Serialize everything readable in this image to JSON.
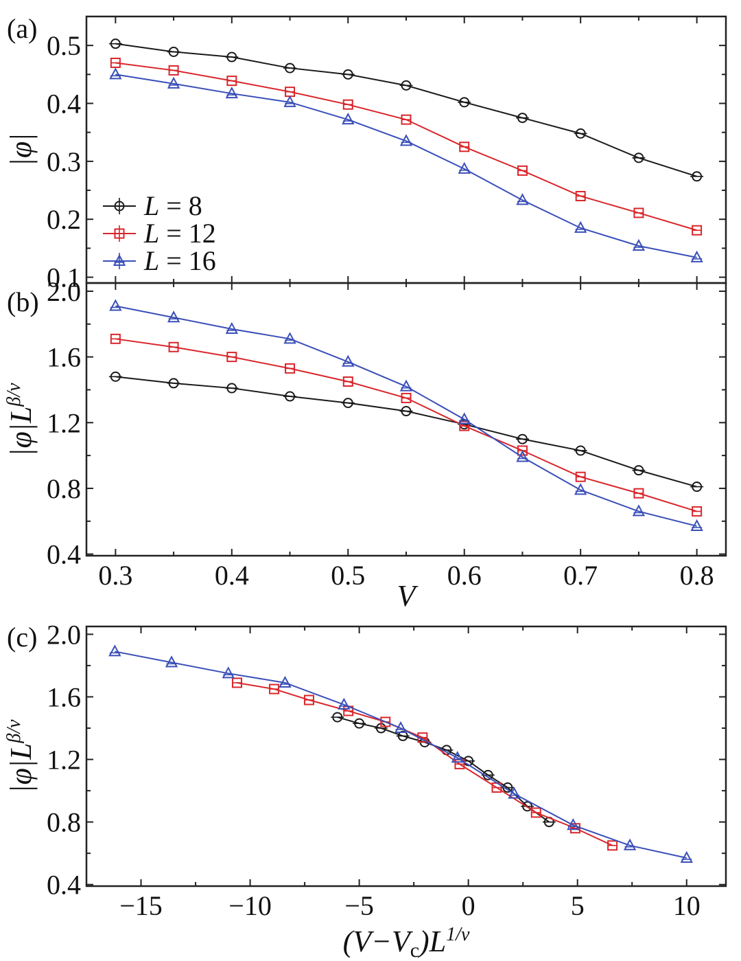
{
  "chart_data": [
    {
      "panel": "(a)",
      "type": "line",
      "xlabel": "",
      "ylabel": "|φ|",
      "xlim": [
        0.275,
        0.825
      ],
      "ylim": [
        0.09,
        0.55
      ],
      "xticks": [
        0.3,
        0.4,
        0.5,
        0.6,
        0.7,
        0.8
      ],
      "yticks": [
        0.1,
        0.2,
        0.3,
        0.4,
        0.5
      ],
      "ytick_labels": [
        "0.1",
        "0.2",
        "0.3",
        "0.4",
        "0.5"
      ],
      "legend_position": "bottom-left",
      "series": [
        {
          "name": "L = 8",
          "label_var": "L",
          "label_val": " = 8",
          "color": "#1a1a1a",
          "marker": "circle",
          "x": [
            0.3,
            0.35,
            0.4,
            0.45,
            0.5,
            0.55,
            0.6,
            0.65,
            0.7,
            0.75,
            0.8
          ],
          "y": [
            0.503,
            0.489,
            0.48,
            0.461,
            0.45,
            0.431,
            0.402,
            0.375,
            0.348,
            0.306,
            0.274
          ]
        },
        {
          "name": "L = 12",
          "label_var": "L",
          "label_val": " = 12",
          "color": "#d9262b",
          "marker": "square",
          "x": [
            0.3,
            0.35,
            0.4,
            0.45,
            0.5,
            0.55,
            0.6,
            0.65,
            0.7,
            0.75,
            0.8
          ],
          "y": [
            0.47,
            0.457,
            0.439,
            0.42,
            0.398,
            0.372,
            0.325,
            0.284,
            0.24,
            0.211,
            0.181
          ]
        },
        {
          "name": "L = 16",
          "label_var": "L",
          "label_val": " = 16",
          "color": "#3a4fb8",
          "marker": "triangle",
          "x": [
            0.3,
            0.35,
            0.4,
            0.45,
            0.5,
            0.55,
            0.6,
            0.65,
            0.7,
            0.75,
            0.8
          ],
          "y": [
            0.45,
            0.434,
            0.417,
            0.402,
            0.372,
            0.335,
            0.287,
            0.233,
            0.185,
            0.154,
            0.134
          ]
        }
      ]
    },
    {
      "panel": "(b)",
      "type": "line",
      "xlabel": "V",
      "ylabel": "|φ|L^{β/ν}",
      "xlim": [
        0.275,
        0.825
      ],
      "ylim": [
        0.39,
        2.05
      ],
      "xticks": [
        0.3,
        0.4,
        0.5,
        0.6,
        0.7,
        0.8
      ],
      "xtick_labels": [
        "0.3",
        "0.4",
        "0.5",
        "0.6",
        "0.7",
        "0.8"
      ],
      "yticks": [
        0.4,
        0.8,
        1.2,
        1.6,
        2.0
      ],
      "ytick_labels": [
        "0.4",
        "0.8",
        "1.2",
        "1.6",
        "2.0"
      ],
      "series": [
        {
          "name": "L = 8",
          "color": "#1a1a1a",
          "marker": "circle",
          "x": [
            0.3,
            0.35,
            0.4,
            0.45,
            0.5,
            0.55,
            0.6,
            0.65,
            0.7,
            0.75,
            0.8
          ],
          "y": [
            1.48,
            1.44,
            1.41,
            1.36,
            1.32,
            1.27,
            1.19,
            1.1,
            1.03,
            0.91,
            0.81
          ]
        },
        {
          "name": "L = 12",
          "color": "#d9262b",
          "marker": "square",
          "x": [
            0.3,
            0.35,
            0.4,
            0.45,
            0.5,
            0.55,
            0.6,
            0.65,
            0.7,
            0.75,
            0.8
          ],
          "y": [
            1.71,
            1.66,
            1.6,
            1.53,
            1.45,
            1.35,
            1.18,
            1.03,
            0.87,
            0.77,
            0.66
          ]
        },
        {
          "name": "L = 16",
          "color": "#3a4fb8",
          "marker": "triangle",
          "x": [
            0.3,
            0.35,
            0.4,
            0.45,
            0.5,
            0.55,
            0.6,
            0.65,
            0.7,
            0.75,
            0.8
          ],
          "y": [
            1.91,
            1.84,
            1.77,
            1.71,
            1.57,
            1.42,
            1.22,
            0.99,
            0.79,
            0.66,
            0.57
          ]
        }
      ]
    },
    {
      "panel": "(c)",
      "type": "line",
      "xlabel": "(V−V_c)L^{1/ν}",
      "ylabel": "|φ|L^{β/ν}",
      "xlim": [
        -17.5,
        11.8
      ],
      "ylim": [
        0.39,
        2.05
      ],
      "xticks": [
        -15,
        -10,
        -5,
        0,
        5,
        10
      ],
      "xtick_labels": [
        "−15",
        "−10",
        "−5",
        "0",
        "5",
        "10"
      ],
      "yticks": [
        0.4,
        0.8,
        1.2,
        1.6,
        2.0
      ],
      "ytick_labels": [
        "0.4",
        "0.8",
        "1.2",
        "1.6",
        "2.0"
      ],
      "series": [
        {
          "name": "L = 8",
          "color": "#1a1a1a",
          "marker": "circle",
          "x": [
            -6.0,
            -5.0,
            -4.0,
            -3.0,
            -2.0,
            -1.0,
            0.0,
            0.9,
            1.8,
            2.7,
            3.7
          ],
          "y": [
            1.47,
            1.43,
            1.4,
            1.35,
            1.31,
            1.26,
            1.19,
            1.1,
            1.02,
            0.9,
            0.8
          ]
        },
        {
          "name": "L = 12",
          "color": "#d9262b",
          "marker": "square",
          "x": [
            -10.6,
            -8.9,
            -7.3,
            -5.5,
            -3.8,
            -2.1,
            -0.4,
            1.3,
            3.1,
            4.9,
            6.6
          ],
          "y": [
            1.69,
            1.65,
            1.58,
            1.51,
            1.44,
            1.34,
            1.17,
            1.02,
            0.86,
            0.76,
            0.65
          ]
        },
        {
          "name": "L = 16",
          "color": "#3a4fb8",
          "marker": "triangle",
          "x": [
            -16.2,
            -13.6,
            -11.0,
            -8.4,
            -5.7,
            -3.1,
            -0.5,
            2.1,
            4.8,
            7.4,
            10.0
          ],
          "y": [
            1.89,
            1.82,
            1.75,
            1.69,
            1.55,
            1.4,
            1.21,
            0.98,
            0.78,
            0.65,
            0.57
          ]
        }
      ]
    }
  ]
}
